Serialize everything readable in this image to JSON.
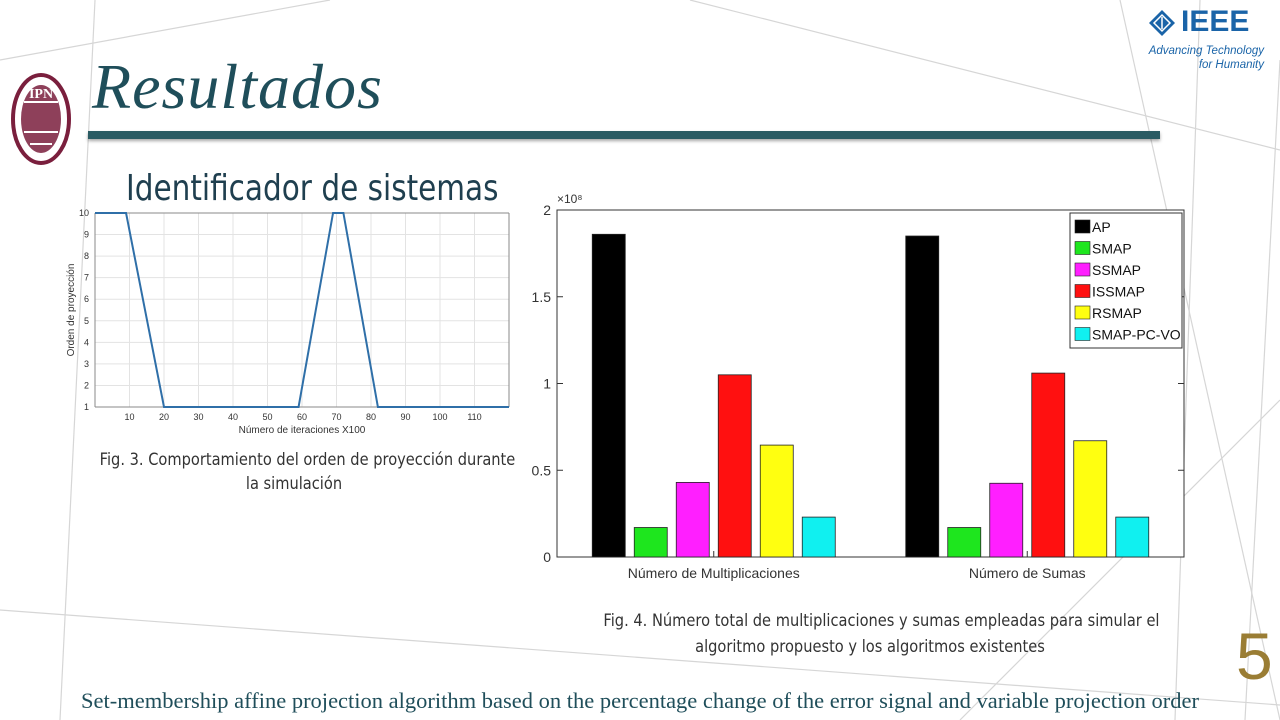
{
  "slide": {
    "title": "Resultados",
    "subtitle": "Identificador de sistemas",
    "slide_number": "5",
    "footer": "Set-membership affine projection algorithm  based on the percentage change of the error signal and variable projection order"
  },
  "logos": {
    "ieee_text": "IEEE",
    "ieee_tagline_1": "Advancing Technology",
    "ieee_tagline_2": "for Humanity",
    "ieee_color": "#1a64a8",
    "ipn_text": "IPN",
    "ipn_color": "#7a1f3d"
  },
  "captions": {
    "fig3_line1": "Fig. 3. Comportamiento del orden de proyección durante",
    "fig3_line2": "la simulación",
    "fig4_line1": "Fig. 4. Número total de multiplicaciones y sumas empleadas para simular el",
    "fig4_line2": "algoritmo propuesto y los algoritmos existentes"
  },
  "chart_data": [
    {
      "type": "line",
      "title": "",
      "xlabel": "Número de iteraciones X100",
      "ylabel": "Orden de proyección",
      "xlim": [
        0,
        120
      ],
      "ylim": [
        1,
        10
      ],
      "xticks": [
        10,
        20,
        30,
        40,
        50,
        60,
        70,
        80,
        90,
        100,
        110
      ],
      "yticks": [
        1,
        2,
        3,
        4,
        5,
        6,
        7,
        8,
        9,
        10
      ],
      "grid": true,
      "series": [
        {
          "color": "#2f6fa8",
          "x": [
            0,
            9,
            20,
            59,
            69,
            72,
            82,
            120
          ],
          "y": [
            10,
            10,
            1,
            1,
            10,
            10,
            1,
            1
          ]
        }
      ]
    },
    {
      "type": "bar",
      "title": "",
      "xlabel": "",
      "ylabel": "",
      "exponent_label": "×10⁸",
      "categories": [
        "Número de Multiplicaciones",
        "Número de Sumas"
      ],
      "ylim": [
        0,
        2
      ],
      "yticks": [
        0,
        0.5,
        1,
        1.5,
        2
      ],
      "ytick_labels": [
        "0",
        "0.5",
        "1",
        "1.5",
        "2"
      ],
      "legend_position": "top-right",
      "series": [
        {
          "name": "AP",
          "color": "#000000",
          "values": [
            1.86,
            1.85
          ]
        },
        {
          "name": "SMAP",
          "color": "#1ee61e",
          "values": [
            0.17,
            0.17
          ]
        },
        {
          "name": "SSMAP",
          "color": "#ff1fff",
          "values": [
            0.43,
            0.425
          ]
        },
        {
          "name": "ISSMAP",
          "color": "#ff1010",
          "values": [
            1.05,
            1.06
          ]
        },
        {
          "name": "RSMAP",
          "color": "#ffff10",
          "values": [
            0.645,
            0.67
          ]
        },
        {
          "name": "SMAP-PC-VO",
          "color": "#10f0f0",
          "values": [
            0.23,
            0.23
          ]
        }
      ]
    }
  ]
}
